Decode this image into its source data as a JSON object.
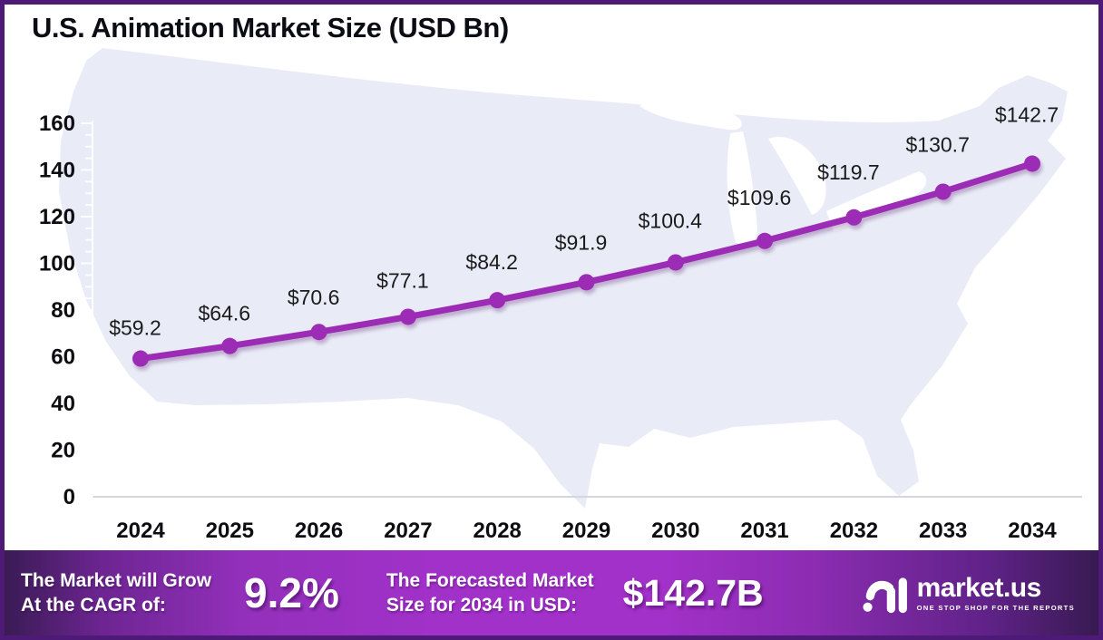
{
  "title": "U.S. Animation Market Size (USD Bn)",
  "chart_data": {
    "type": "line",
    "title": "U.S. Animation Market Size (USD Bn)",
    "categories": [
      "2024",
      "2025",
      "2026",
      "2027",
      "2028",
      "2029",
      "2030",
      "2031",
      "2032",
      "2033",
      "2034"
    ],
    "series": [
      {
        "name": "U.S. Animation Market Size (USD Bn)",
        "values": [
          59.2,
          64.6,
          70.6,
          77.1,
          84.2,
          91.9,
          100.4,
          109.6,
          119.7,
          130.7,
          142.7
        ]
      }
    ],
    "point_labels": [
      "$59.2",
      "$64.6",
      "$70.6",
      "$77.1",
      "$84.2",
      "$91.9",
      "$100.4",
      "$109.6",
      "$119.7",
      "$130.7",
      "$142.7"
    ],
    "xlabel": "",
    "ylabel": "",
    "ylim": [
      0,
      160
    ],
    "y_ticks": [
      0,
      20,
      40,
      60,
      80,
      100,
      120,
      140,
      160
    ],
    "grid": false,
    "legend_position": "none",
    "line_color": "#9c2bb5",
    "marker": "circle",
    "background_motif": "us-map-silhouette"
  },
  "footer": {
    "cagr_label_line1": "The Market will Grow",
    "cagr_label_line2": "At the CAGR of:",
    "cagr_value": "9.2%",
    "forecast_label_line1": "The Forecasted Market",
    "forecast_label_line2": "Size for 2034 in USD:",
    "forecast_value": "$142.7B",
    "brand": {
      "name": "market.us",
      "tagline": "ONE STOP SHOP FOR THE REPORTS"
    }
  },
  "colors": {
    "line": "#9c2bb5",
    "frame_border": "#4e1a78",
    "map_fill": "#e9ecf7",
    "axis_line": "#d5d5df",
    "footer_purple": "#a231c9",
    "text_dark": "#0d0d12"
  }
}
